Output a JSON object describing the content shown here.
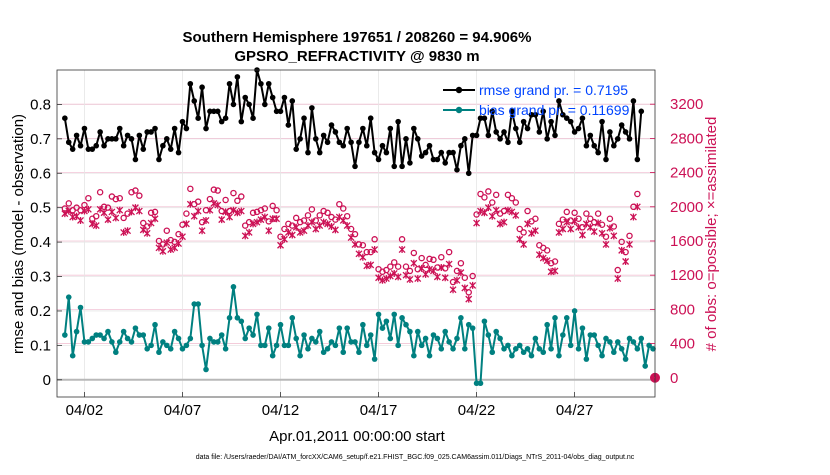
{
  "chart_data": {
    "type": "line",
    "title": "Southern Hemisphere 197651 / 208260 = 94.906%",
    "subtitle": "GPSRO_REFRACTIVITY @ 9830 m",
    "xlabel": "Apr.01,2011 00:00:00 start",
    "ylabel_left": "rmse and bias (model - observation)",
    "ylabel_right": "# of obs: o=possible; ×=assimilated",
    "footnote": "data file: /Users/raeder/DAI/ATM_forcXX/CAM6_setup/f.e21.FHIST_BGC.f09_025.CAM6assim.011/Diags_NTrS_2011-04/obs_diag_output.nc",
    "x_range_days": [
      0.6,
      31.1
    ],
    "x_ticks": [
      {
        "day": 2,
        "label": "04/02"
      },
      {
        "day": 7,
        "label": "04/07"
      },
      {
        "day": 12,
        "label": "04/12"
      },
      {
        "day": 17,
        "label": "04/17"
      },
      {
        "day": 22,
        "label": "04/22"
      },
      {
        "day": 27,
        "label": "04/27"
      }
    ],
    "ylim_left": [
      -0.05,
      0.9
    ],
    "yticks_left": [
      0,
      0.1,
      0.2,
      0.3,
      0.4,
      0.5,
      0.6,
      0.7,
      0.8
    ],
    "yticklabels_left": [
      "0",
      "0.1",
      "0.2",
      "0.3",
      "0.4",
      "0.5",
      "0.6",
      "0.7",
      "0.8"
    ],
    "ylim_right": [
      -225,
      3600
    ],
    "yticks_right": [
      0,
      400,
      800,
      1200,
      1600,
      2000,
      2400,
      2800,
      3200
    ],
    "yticklabels_right": [
      "0",
      "400",
      "800",
      "1200",
      "1600",
      "2000",
      "2400",
      "2800",
      "3200"
    ],
    "grid": true,
    "legend_position": "top-right",
    "colors": {
      "rmse": "#000000",
      "bias": "#008080",
      "obs": "#cc1155",
      "legend_text": "#0044ff",
      "zero_line": "#b8b8b8"
    },
    "series": [
      {
        "name": "rmse grand pr. = 0.7195",
        "axis": "left",
        "values": [
          0.76,
          0.69,
          0.67,
          0.71,
          0.68,
          0.73,
          0.67,
          0.67,
          0.68,
          0.72,
          0.68,
          0.7,
          0.7,
          0.7,
          0.73,
          0.68,
          0.71,
          0.7,
          0.64,
          0.71,
          0.67,
          0.72,
          0.72,
          0.73,
          0.64,
          0.68,
          0.7,
          0.67,
          0.73,
          0.66,
          0.75,
          0.73,
          0.86,
          0.81,
          0.76,
          0.85,
          0.73,
          0.78,
          0.78,
          0.78,
          0.75,
          0.76,
          0.86,
          0.8,
          0.88,
          0.75,
          0.82,
          0.8,
          0.76,
          0.9,
          0.86,
          0.8,
          0.86,
          0.82,
          0.78,
          0.78,
          0.82,
          0.74,
          0.81,
          0.67,
          0.7,
          0.76,
          0.66,
          0.79,
          0.7,
          0.66,
          0.71,
          0.69,
          0.74,
          0.72,
          0.69,
          0.68,
          0.73,
          0.69,
          0.62,
          0.69,
          0.73,
          0.68,
          0.76,
          0.66,
          0.64,
          0.68,
          0.66,
          0.73,
          0.62,
          0.75,
          0.62,
          0.7,
          0.63,
          0.73,
          0.7,
          0.65,
          0.66,
          0.68,
          0.64,
          0.64,
          0.66,
          0.63,
          0.66,
          0.66,
          0.61,
          0.68,
          0.7,
          0.6,
          0.71,
          0.71,
          0.76,
          0.76,
          0.71,
          0.78,
          0.72,
          0.7,
          0.72,
          0.69,
          0.78,
          0.73,
          0.69,
          0.75,
          0.73,
          0.77,
          0.77,
          0.72,
          0.78,
          0.7,
          0.75,
          0.71,
          0.81,
          0.77,
          0.76,
          0.75,
          0.72,
          0.73,
          0.76,
          0.68,
          0.71,
          0.68,
          0.66,
          0.75,
          0.64,
          0.72,
          0.68,
          0.7,
          0.74,
          0.72,
          0.7,
          0.81,
          0.64,
          0.78
        ]
      },
      {
        "name": "bias grand pr. = 0.11699",
        "axis": "left",
        "values": [
          0.13,
          0.24,
          0.07,
          0.14,
          0.21,
          0.11,
          0.11,
          0.12,
          0.13,
          0.13,
          0.12,
          0.14,
          0.11,
          0.08,
          0.11,
          0.14,
          0.12,
          0.11,
          0.15,
          0.13,
          0.13,
          0.09,
          0.1,
          0.16,
          0.08,
          0.11,
          0.1,
          0.09,
          0.14,
          0.12,
          0.09,
          0.1,
          0.12,
          0.22,
          0.22,
          0.1,
          0.03,
          0.12,
          0.11,
          0.11,
          0.13,
          0.09,
          0.18,
          0.27,
          0.18,
          0.17,
          0.12,
          0.15,
          0.13,
          0.19,
          0.1,
          0.1,
          0.15,
          0.07,
          0.1,
          0.16,
          0.1,
          0.1,
          0.18,
          0.12,
          0.07,
          0.13,
          0.09,
          0.12,
          0.11,
          0.14,
          0.08,
          0.09,
          0.11,
          0.1,
          0.15,
          0.08,
          0.15,
          0.11,
          0.11,
          0.08,
          0.16,
          0.1,
          0.13,
          0.06,
          0.19,
          0.15,
          0.17,
          0.12,
          0.19,
          0.1,
          0.18,
          0.16,
          0.14,
          0.07,
          0.14,
          0.1,
          0.12,
          0.07,
          0.13,
          0.12,
          0.09,
          0.14,
          0.11,
          0.09,
          0.12,
          0.18,
          0.09,
          0.16,
          0.15,
          -0.01,
          -0.01,
          0.17,
          0.13,
          0.08,
          0.14,
          0.12,
          0.09,
          0.1,
          0.07,
          0.09,
          0.1,
          0.08,
          0.09,
          0.07,
          0.12,
          0.09,
          0.08,
          0.16,
          0.09,
          0.18,
          0.07,
          0.13,
          0.18,
          0.1,
          0.2,
          0.09,
          0.15,
          0.06,
          0.13,
          0.13,
          0.1,
          0.07,
          0.12,
          0.11,
          0.08,
          0.11,
          0.09,
          0.06,
          0.12,
          0.11,
          0.09,
          0.12,
          0.04,
          0.1,
          0.09
        ]
      },
      {
        "name": "# of obs possible",
        "axis": "right",
        "marker": "o",
        "values": [
          1980,
          2040,
          1960,
          1990,
          1960,
          2020,
          2100,
          1860,
          1890,
          2170,
          2000,
          1990,
          2120,
          2090,
          2100,
          1870,
          1920,
          2170,
          2190,
          2130,
          1810,
          1770,
          1930,
          1940,
          1600,
          1560,
          1720,
          1610,
          1590,
          1680,
          1790,
          1920,
          2210,
          2030,
          2060,
          1820,
          1960,
          2090,
          2200,
          2190,
          1950,
          2080,
          1950,
          2160,
          2070,
          2120,
          1780,
          1820,
          1930,
          1940,
          1960,
          1980,
          1830,
          2010,
          1960,
          1650,
          1740,
          1800,
          1780,
          1870,
          1820,
          1840,
          1900,
          1970,
          1840,
          1900,
          1950,
          1930,
          1880,
          1850,
          2030,
          1980,
          1890,
          1740,
          1680,
          1560,
          1550,
          1470,
          1470,
          1620,
          1270,
          1240,
          1260,
          1300,
          1350,
          1300,
          1620,
          1300,
          1250,
          1460,
          1270,
          1400,
          1320,
          1390,
          1380,
          1290,
          1410,
          1280,
          1470,
          1120,
          1250,
          1340,
          1170,
          1000,
          1190,
          1910,
          2150,
          2110,
          2180,
          2050,
          2140,
          1920,
          1950,
          2140,
          2100,
          2050,
          1740,
          1700,
          1950,
          1830,
          1860,
          1550,
          1520,
          1490,
          1340,
          1360,
          1800,
          1850,
          1940,
          1840,
          1930,
          1860,
          1760,
          1920,
          1860,
          1820,
          1920,
          1790,
          1650,
          1860,
          1770,
          1260,
          1590,
          1470,
          1660,
          2000,
          2150
        ]
      },
      {
        "name": "# of obs assimilated",
        "axis": "right",
        "marker": "x",
        "values": [
          1920,
          1950,
          1880,
          1890,
          1840,
          1950,
          1970,
          1800,
          1780,
          1970,
          1930,
          1850,
          1940,
          1870,
          1960,
          1700,
          1720,
          1940,
          1990,
          1950,
          1730,
          1690,
          1810,
          1860,
          1520,
          1480,
          1580,
          1500,
          1520,
          1570,
          1650,
          1800,
          2030,
          1890,
          1950,
          1720,
          1840,
          1960,
          2040,
          2020,
          1850,
          1940,
          1880,
          1960,
          1930,
          1950,
          1660,
          1700,
          1800,
          1820,
          1850,
          1880,
          1720,
          1860,
          1860,
          1550,
          1620,
          1700,
          1670,
          1760,
          1700,
          1720,
          1780,
          1820,
          1740,
          1780,
          1820,
          1800,
          1770,
          1730,
          1880,
          1840,
          1780,
          1640,
          1560,
          1450,
          1410,
          1310,
          1320,
          1500,
          1170,
          1140,
          1160,
          1190,
          1220,
          1180,
          1500,
          1200,
          1150,
          1340,
          1160,
          1280,
          1210,
          1270,
          1250,
          1180,
          1290,
          1170,
          1330,
          1030,
          1140,
          1230,
          1050,
          920,
          1080,
          1810,
          1950,
          1930,
          1990,
          1890,
          1960,
          1800,
          1820,
          1960,
          1940,
          1900,
          1620,
          1560,
          1800,
          1690,
          1720,
          1440,
          1400,
          1370,
          1240,
          1250,
          1700,
          1740,
          1820,
          1740,
          1830,
          1760,
          1670,
          1800,
          1760,
          1710,
          1810,
          1690,
          1560,
          1750,
          1660,
          1160,
          1490,
          1360,
          1560,
          1880,
          2000
        ]
      }
    ]
  }
}
